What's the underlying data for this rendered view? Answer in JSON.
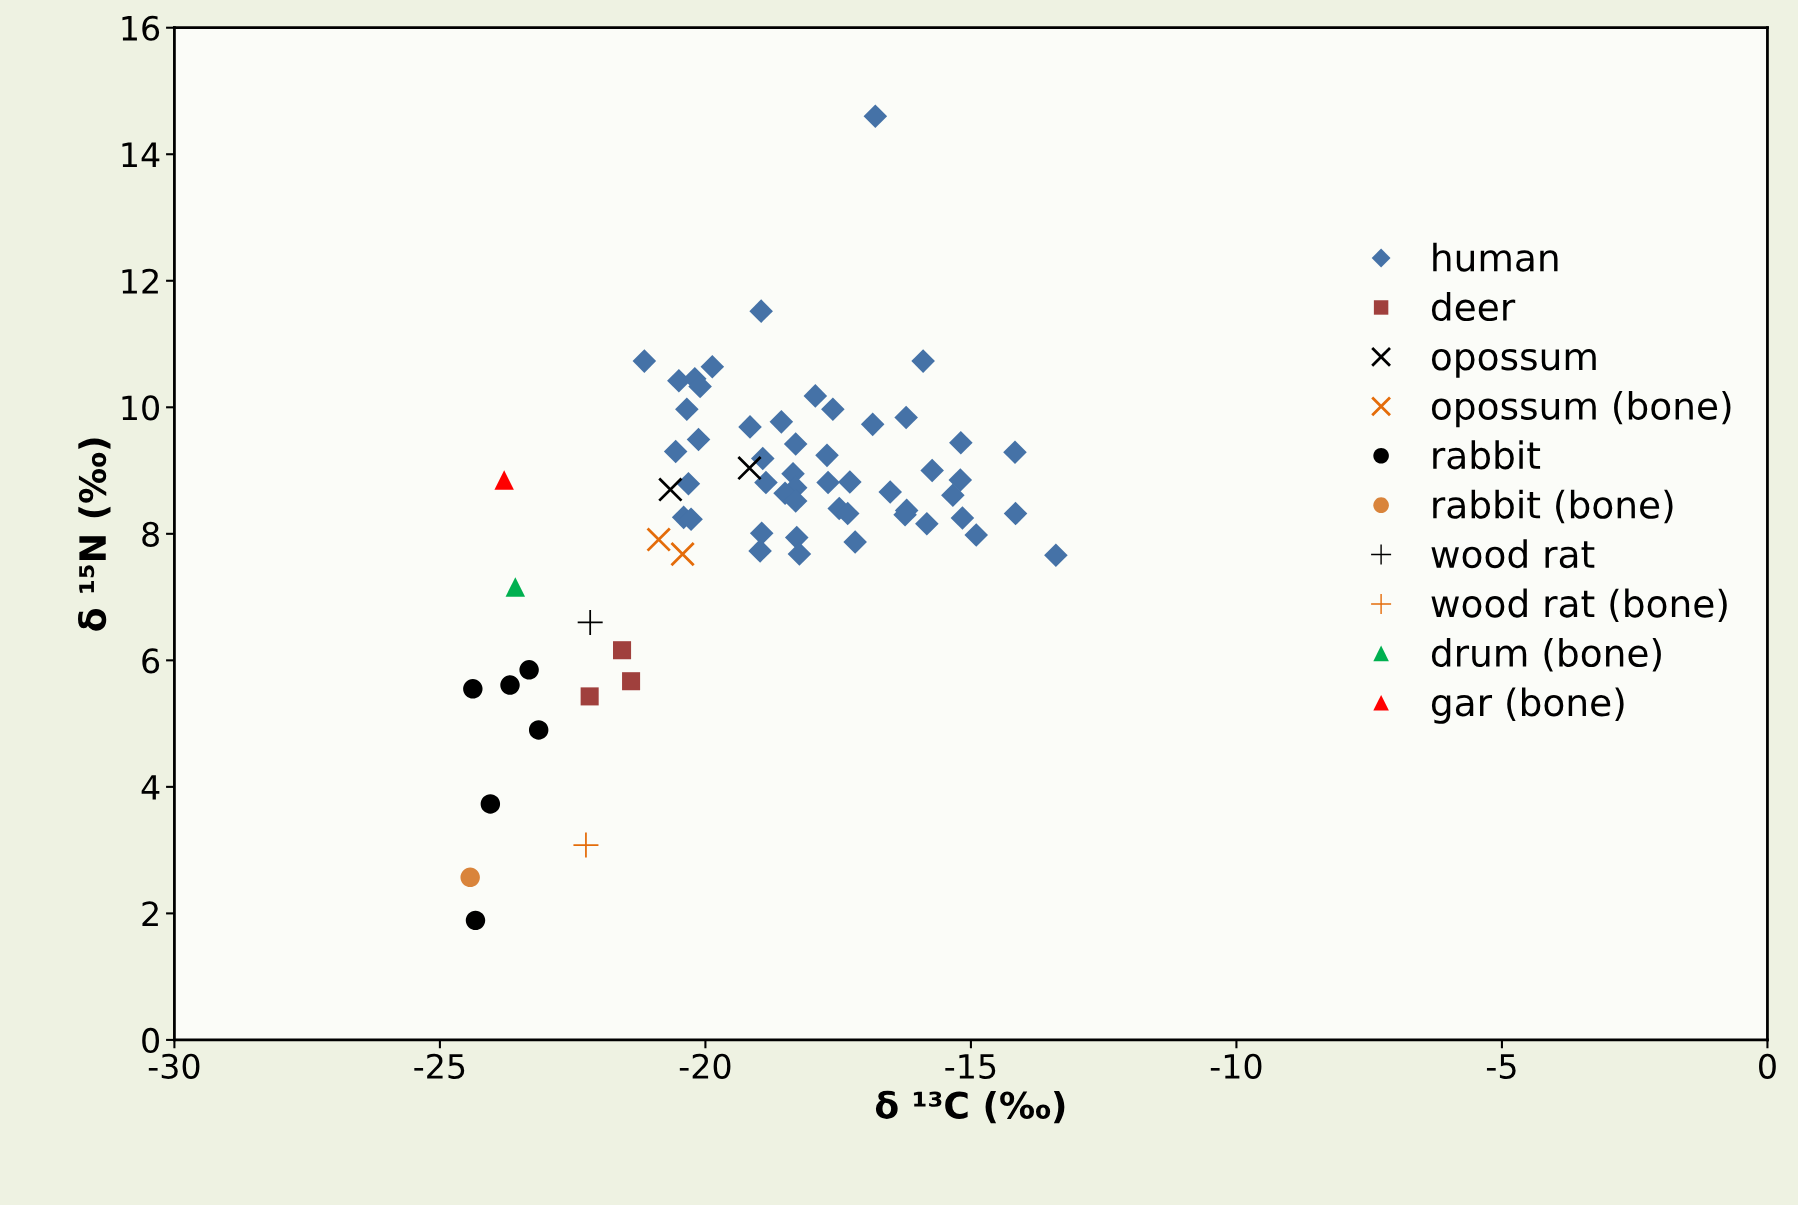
{
  "chart_data": {
    "type": "scatter",
    "xlabel": "δ ¹³C (‰)",
    "ylabel": "δ ¹⁵N (‰)",
    "xlim": [
      -30,
      0
    ],
    "xticks": [
      -30,
      -25,
      -20,
      -15,
      -10,
      -5,
      0
    ],
    "ylim": [
      0,
      16
    ],
    "yticks": [
      0,
      2,
      4,
      6,
      8,
      10,
      12,
      14,
      16
    ],
    "grid": false,
    "legend": "right",
    "series": [
      {
        "name": "human",
        "color": "#4572a7",
        "marker": "diamond",
        "x": [
          -16.8,
          -18.95,
          -21.15,
          -15.9,
          -19.87,
          -20.5,
          -20.2,
          -20.1,
          -17.93,
          -20.35,
          -17.6,
          -16.22,
          -18.57,
          -16.85,
          -19.16,
          -20.13,
          -15.19,
          -18.3,
          -20.56,
          -14.17,
          -17.71,
          -18.92,
          -15.73,
          -18.35,
          -15.2,
          -17.28,
          -18.86,
          -17.69,
          -20.32,
          -18.3,
          -18.5,
          -16.52,
          -15.34,
          -18.3,
          -17.48,
          -16.21,
          -17.32,
          -14.16,
          -16.24,
          -20.41,
          -20.27,
          -15.16,
          -15.83,
          -18.94,
          -14.9,
          -18.28,
          -17.18,
          -18.97,
          -18.23,
          -13.4
        ],
        "values": [
          14.6,
          11.52,
          10.73,
          10.73,
          10.64,
          10.42,
          10.45,
          10.33,
          10.18,
          9.97,
          9.97,
          9.84,
          9.77,
          9.73,
          9.69,
          9.49,
          9.44,
          9.42,
          9.3,
          9.29,
          9.24,
          9.19,
          9.0,
          8.95,
          8.85,
          8.82,
          8.81,
          8.81,
          8.79,
          8.73,
          8.64,
          8.66,
          8.61,
          8.52,
          8.4,
          8.37,
          8.32,
          8.32,
          8.3,
          8.26,
          8.23,
          8.25,
          8.16,
          8.01,
          7.98,
          7.94,
          7.87,
          7.73,
          7.68,
          7.66
        ]
      },
      {
        "name": "deer",
        "color": "#a0403d",
        "marker": "square",
        "x": [
          -21.57,
          -21.4,
          -22.18
        ],
        "values": [
          6.16,
          5.67,
          5.43
        ]
      },
      {
        "name": "opossum",
        "color": "#000000",
        "marker": "x",
        "x": [
          -20.66,
          -19.17
        ],
        "values": [
          8.7,
          9.04
        ]
      },
      {
        "name": "opossum (bone)",
        "color": "#e46c0a",
        "marker": "x",
        "x": [
          -20.88,
          -20.43
        ],
        "values": [
          7.91,
          7.68
        ]
      },
      {
        "name": "rabbit",
        "color": "#000000",
        "marker": "circle",
        "x": [
          -24.38,
          -23.68,
          -23.32,
          -23.14,
          -24.05,
          -24.33
        ],
        "values": [
          5.55,
          5.61,
          5.85,
          4.9,
          3.73,
          1.89
        ]
      },
      {
        "name": "rabbit (bone)",
        "color": "#d9843b",
        "marker": "circle",
        "x": [
          -24.43
        ],
        "values": [
          2.57
        ]
      },
      {
        "name": "wood rat",
        "color": "#000000",
        "marker": "cross",
        "x": [
          -22.17
        ],
        "values": [
          6.6
        ]
      },
      {
        "name": "wood rat (bone)",
        "color": "#e46c0a",
        "marker": "cross",
        "x": [
          -22.25
        ],
        "values": [
          3.08
        ]
      },
      {
        "name": "drum (bone)",
        "color": "#00b050",
        "marker": "triangle",
        "x": [
          -23.58
        ],
        "values": [
          7.16
        ]
      },
      {
        "name": "gar (bone)",
        "color": "#ff0000",
        "marker": "triangle",
        "x": [
          -23.79
        ],
        "values": [
          8.85
        ]
      }
    ]
  }
}
